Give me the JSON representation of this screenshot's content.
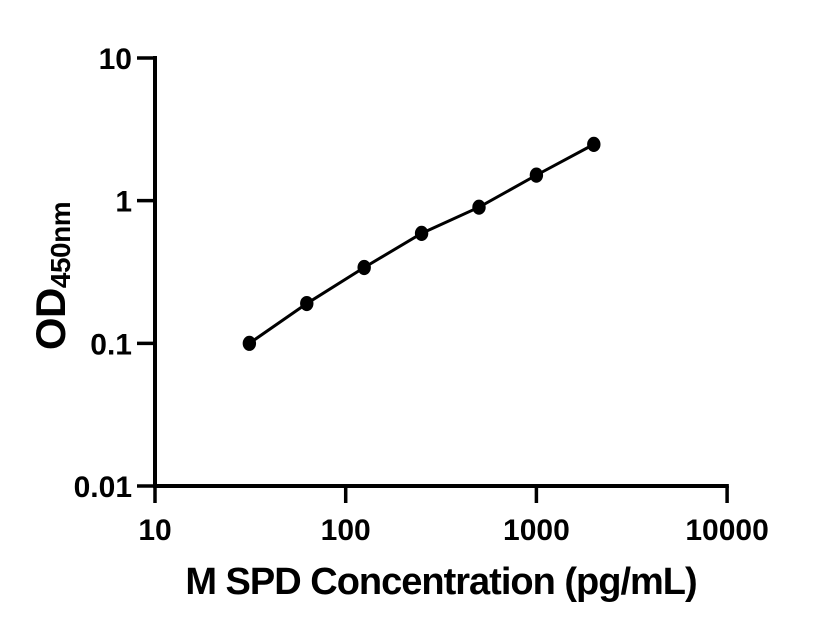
{
  "figure": {
    "background": "#ffffff",
    "axis_color": "#000000"
  },
  "chart_data": {
    "type": "scatter",
    "xlabel": "M SPD Concentration (pg/mL)",
    "ylabel": {
      "main": "OD",
      "sub": "450nm"
    },
    "x_scale": "log",
    "y_scale": "log",
    "xlim": [
      10,
      10000
    ],
    "ylim": [
      0.01,
      10
    ],
    "x": [
      31.25,
      62.5,
      125,
      250,
      500,
      1000,
      2000
    ],
    "y": [
      0.1,
      0.19,
      0.34,
      0.59,
      0.9,
      1.51,
      2.48
    ],
    "x_ticks": [
      10,
      100,
      1000,
      10000
    ],
    "x_tick_labels": [
      "10",
      "100",
      "1000",
      "10000"
    ],
    "y_ticks": [
      10,
      1,
      0.1,
      0.01
    ],
    "y_tick_labels": [
      "10",
      "1",
      "0.1",
      "0.01"
    ],
    "grid": false,
    "legend": null,
    "line_color": "#000000",
    "marker_color": "#000000",
    "marker": "filled-circle"
  }
}
